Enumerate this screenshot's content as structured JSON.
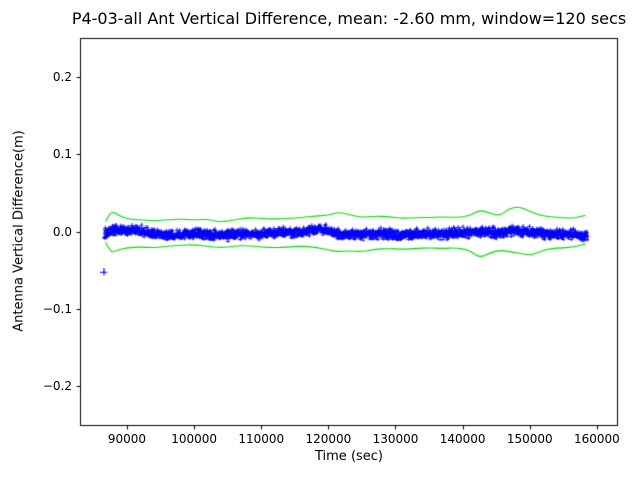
{
  "figure": {
    "title": "P4-03-all Ant Vertical Difference, mean: -2.60 mm, window=120 secs",
    "xlabel": "Time (sec)",
    "ylabel": "Antenna Vertical Difference(m)"
  },
  "chart_data": {
    "type": "scatter",
    "title": "P4-03-all Ant Vertical Difference, mean: -2.60 mm, window=120 secs",
    "xlabel": "Time (sec)",
    "ylabel": "Antenna Vertical Difference(m)",
    "mean_mm": -2.6,
    "window_secs": 120,
    "xlim": [
      83000,
      163000
    ],
    "ylim": [
      -0.25,
      0.25
    ],
    "xticks": [
      90000,
      100000,
      110000,
      120000,
      130000,
      140000,
      150000,
      160000
    ],
    "yticks": [
      -0.2,
      -0.1,
      0.0,
      0.1,
      0.2
    ],
    "grid": false,
    "legend": "none",
    "colors": {
      "data": "#0000ff",
      "envelope": "#00dd00",
      "axis": "#000000"
    },
    "series": [
      {
        "name": "antenna-vertical-difference",
        "type": "scatter-band",
        "marker": "+",
        "color": "#0000ff",
        "x_range": [
          86600,
          158600
        ],
        "n_points": 2400,
        "noise_amplitude": 0.006,
        "center": [
          [
            86600,
            -0.003
          ],
          [
            88000,
            0.002
          ],
          [
            90000,
            0.001
          ],
          [
            91500,
            0.002
          ],
          [
            93000,
            -0.002
          ],
          [
            95000,
            -0.004
          ],
          [
            97000,
            -0.005
          ],
          [
            99000,
            -0.003
          ],
          [
            100500,
            -0.002
          ],
          [
            102000,
            -0.004
          ],
          [
            104000,
            -0.005
          ],
          [
            106000,
            -0.003
          ],
          [
            108000,
            -0.002
          ],
          [
            110000,
            -0.003
          ],
          [
            112000,
            -0.002
          ],
          [
            114000,
            -0.001
          ],
          [
            116000,
            -0.001
          ],
          [
            117500,
            0.002
          ],
          [
            119000,
            0.003
          ],
          [
            120500,
            -0.001
          ],
          [
            122000,
            -0.004
          ],
          [
            124000,
            -0.003
          ],
          [
            126000,
            -0.004
          ],
          [
            128000,
            -0.002
          ],
          [
            130000,
            -0.004
          ],
          [
            131500,
            -0.005
          ],
          [
            133000,
            -0.003
          ],
          [
            135000,
            -0.002
          ],
          [
            137000,
            -0.003
          ],
          [
            139000,
            -0.002
          ],
          [
            141000,
            -0.001
          ],
          [
            143000,
            0.001
          ],
          [
            145000,
            -0.001
          ],
          [
            147000,
            0.0
          ],
          [
            149000,
            0.001
          ],
          [
            151000,
            -0.002
          ],
          [
            153000,
            -0.003
          ],
          [
            155000,
            -0.002
          ],
          [
            156500,
            -0.004
          ],
          [
            157800,
            -0.007
          ],
          [
            158600,
            -0.004
          ]
        ]
      },
      {
        "name": "upper-envelope",
        "type": "line",
        "color": "#00dd00",
        "points": [
          [
            86800,
            0.013
          ],
          [
            87600,
            0.027
          ],
          [
            88500,
            0.022
          ],
          [
            90000,
            0.016
          ],
          [
            92000,
            0.015
          ],
          [
            94000,
            0.014
          ],
          [
            96000,
            0.015
          ],
          [
            98000,
            0.016
          ],
          [
            100000,
            0.015
          ],
          [
            102000,
            0.016
          ],
          [
            104000,
            0.012
          ],
          [
            106000,
            0.015
          ],
          [
            108000,
            0.018
          ],
          [
            110000,
            0.017
          ],
          [
            112000,
            0.016
          ],
          [
            114000,
            0.017
          ],
          [
            116000,
            0.018
          ],
          [
            118000,
            0.02
          ],
          [
            120000,
            0.021
          ],
          [
            121500,
            0.025
          ],
          [
            123000,
            0.022
          ],
          [
            125000,
            0.018
          ],
          [
            127000,
            0.02
          ],
          [
            129000,
            0.019
          ],
          [
            131000,
            0.017
          ],
          [
            133000,
            0.018
          ],
          [
            135000,
            0.018
          ],
          [
            137000,
            0.019
          ],
          [
            139000,
            0.018
          ],
          [
            141000,
            0.02
          ],
          [
            142500,
            0.028
          ],
          [
            144000,
            0.024
          ],
          [
            145500,
            0.02
          ],
          [
            147000,
            0.03
          ],
          [
            148500,
            0.032
          ],
          [
            150000,
            0.026
          ],
          [
            151500,
            0.021
          ],
          [
            153000,
            0.019
          ],
          [
            155000,
            0.018
          ],
          [
            156500,
            0.017
          ],
          [
            158300,
            0.021
          ]
        ]
      },
      {
        "name": "lower-envelope",
        "type": "line",
        "color": "#00dd00",
        "points": [
          [
            86800,
            -0.014
          ],
          [
            87600,
            -0.028
          ],
          [
            88500,
            -0.024
          ],
          [
            90000,
            -0.021
          ],
          [
            92000,
            -0.02
          ],
          [
            94000,
            -0.021
          ],
          [
            96000,
            -0.019
          ],
          [
            98000,
            -0.018
          ],
          [
            100000,
            -0.017
          ],
          [
            102000,
            -0.019
          ],
          [
            104000,
            -0.021
          ],
          [
            106000,
            -0.019
          ],
          [
            108000,
            -0.018
          ],
          [
            110000,
            -0.02
          ],
          [
            112000,
            -0.021
          ],
          [
            114000,
            -0.02
          ],
          [
            116000,
            -0.019
          ],
          [
            118000,
            -0.02
          ],
          [
            120000,
            -0.024
          ],
          [
            121500,
            -0.026
          ],
          [
            123000,
            -0.025
          ],
          [
            125000,
            -0.026
          ],
          [
            127000,
            -0.023
          ],
          [
            129000,
            -0.022
          ],
          [
            131000,
            -0.023
          ],
          [
            133000,
            -0.022
          ],
          [
            135000,
            -0.021
          ],
          [
            137000,
            -0.022
          ],
          [
            139000,
            -0.021
          ],
          [
            141000,
            -0.024
          ],
          [
            142500,
            -0.034
          ],
          [
            144000,
            -0.028
          ],
          [
            145500,
            -0.024
          ],
          [
            147000,
            -0.026
          ],
          [
            148500,
            -0.028
          ],
          [
            150000,
            -0.031
          ],
          [
            151500,
            -0.026
          ],
          [
            153000,
            -0.022
          ],
          [
            155000,
            -0.021
          ],
          [
            156500,
            -0.02
          ],
          [
            158300,
            -0.016
          ]
        ]
      },
      {
        "name": "outlier-point",
        "type": "scatter",
        "marker": "+",
        "color": "#0000ff",
        "points": [
          [
            86500,
            -0.052
          ]
        ]
      }
    ]
  }
}
